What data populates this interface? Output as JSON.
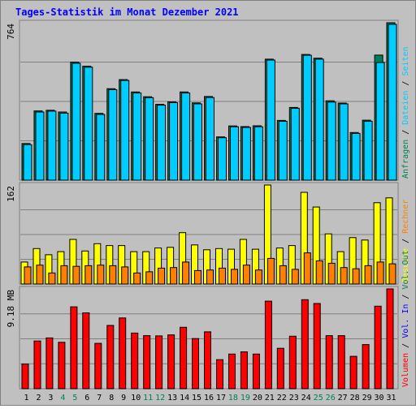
{
  "chart_data": {
    "type": "bar",
    "title": "Tages-Statistik im Monat Dezember 2021",
    "categories": [
      "1",
      "2",
      "3",
      "4",
      "5",
      "6",
      "7",
      "8",
      "9",
      "10",
      "11",
      "12",
      "13",
      "14",
      "15",
      "16",
      "17",
      "18",
      "19",
      "20",
      "21",
      "22",
      "23",
      "24",
      "25",
      "26",
      "27",
      "28",
      "29",
      "30",
      "31"
    ],
    "weekend_days": [
      "4",
      "5",
      "11",
      "12",
      "18",
      "19",
      "25",
      "26"
    ],
    "panels": [
      {
        "name": "hits-files-pages",
        "scale_label": "764",
        "ylim": [
          0,
          764
        ],
        "series": [
          {
            "name": "Anfragen",
            "color": "#00805a",
            "values": [
              178,
              336,
              339,
              331,
              573,
              553,
              324,
              444,
              488,
              428,
              405,
              368,
              380,
              428,
              375,
              406,
              210,
              263,
              260,
              264,
              587,
              290,
              353,
              610,
              592,
              385,
              374,
              231,
              291,
              607,
              764
            ]
          },
          {
            "name": "Dateien",
            "color": "#00ccff",
            "values": [
              172,
              331,
              335,
              325,
              567,
              548,
              319,
              439,
              484,
              423,
              400,
              364,
              376,
              423,
              370,
              401,
              206,
              259,
              256,
              259,
              583,
              286,
              349,
              606,
              587,
              379,
              370,
              227,
              286,
              571,
              756
            ]
          },
          {
            "name": "Seiten",
            "color": "#00ccff",
            "values": []
          }
        ]
      },
      {
        "name": "visits-sites",
        "scale_label": "162",
        "ylim": [
          0,
          162
        ],
        "series": [
          {
            "name": "Besuche",
            "color": "#ffff00",
            "values": [
              36,
              58,
              48,
              53,
              73,
              54,
              66,
              63,
              63,
              53,
              53,
              59,
              60,
              84,
              64,
              56,
              58,
              57,
              73,
              57,
              162,
              59,
              63,
              150,
              126,
              82,
              53,
              76,
              72,
              133,
              141
            ]
          },
          {
            "name": "Rechner",
            "color": "#ff8000",
            "values": [
              28,
              31,
              18,
              30,
              29,
              30,
              31,
              30,
              28,
              18,
              20,
              26,
              27,
              36,
              22,
              23,
              26,
              24,
              31,
              23,
              42,
              30,
              24,
              51,
              38,
              34,
              27,
              25,
              30,
              36,
              33
            ]
          }
        ],
        "legend_separator": " / "
      },
      {
        "name": "volume",
        "scale_label": "9.18 MB",
        "ylim": [
          0,
          9.18
        ],
        "series": [
          {
            "name": "Volumen",
            "color": "#ff0000",
            "values": [
              2.27,
              4.39,
              4.67,
              4.27,
              7.53,
              6.98,
              4.17,
              5.82,
              6.51,
              5.12,
              4.88,
              4.86,
              4.95,
              5.65,
              4.61,
              5.23,
              2.67,
              3.19,
              3.39,
              3.19,
              8.05,
              3.72,
              4.83,
              8.19,
              7.84,
              4.88,
              4.88,
              2.98,
              4.06,
              7.59,
              9.18
            ]
          },
          {
            "name": "Vol. In",
            "color": "#0000ff",
            "values": []
          },
          {
            "name": "Vol. Out",
            "color": "#00805a",
            "values": []
          }
        ],
        "legend_separator": " / "
      }
    ],
    "colors": {
      "background": "#c0c0c0",
      "border": "#808080",
      "weekday_label": "#000000",
      "weekend_label": "#00805a"
    }
  }
}
